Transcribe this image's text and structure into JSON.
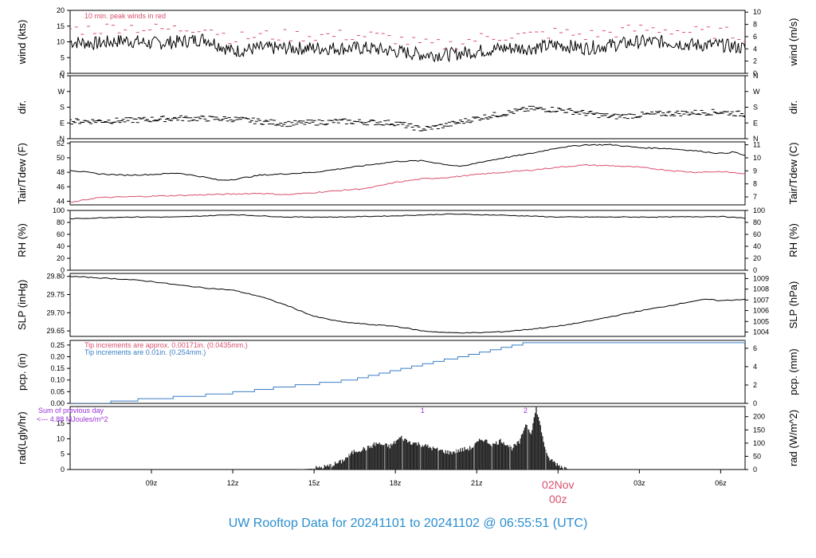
{
  "footer": {
    "title": "UW Rooftop Data for 20241101  to  20241102 @ 06:55:51  (UTC)"
  },
  "colors": {
    "trace": "#000000",
    "red": "#d94f6e",
    "blue": "#3a7ec4",
    "purple": "#9b30d9",
    "footer": "#2a8fd0",
    "axis": "#000000"
  },
  "chart_data": {
    "type": "line",
    "x_axis": {
      "unit": "hours since 01Nov 06z",
      "range": [
        0,
        24.9
      ],
      "ticks": [
        {
          "x": 3,
          "label": "09z"
        },
        {
          "x": 6,
          "label": "12z"
        },
        {
          "x": 9,
          "label": "15z"
        },
        {
          "x": 12,
          "label": "18z"
        },
        {
          "x": 15,
          "label": "21z"
        },
        {
          "x": 18,
          "label": "00z"
        },
        {
          "x": 21,
          "label": "03z"
        },
        {
          "x": 24,
          "label": "06z"
        }
      ],
      "date_label": "02Nov",
      "date_tick": "00z"
    },
    "panels": [
      {
        "name": "wind",
        "ylabel": "wind (kts)",
        "ylabel_right": "wind (m/s)",
        "ylim": [
          0,
          20
        ],
        "yticks": [
          0,
          5,
          10,
          15,
          20
        ],
        "yticks_right": {
          "labels": [
            "0",
            "2",
            "4",
            "6",
            "8",
            "10"
          ],
          "values": [
            0,
            3.89,
            7.78,
            11.66,
            15.55,
            19.44
          ]
        },
        "annotation": "10 min. peak winds in red",
        "series": [
          {
            "name": "wind",
            "style": "line",
            "x": [
              0,
              1,
              2,
              3,
              4,
              5,
              6,
              7,
              8,
              9,
              10,
              11,
              12,
              13,
              14,
              15,
              16,
              17,
              18,
              19,
              20,
              21,
              22,
              23,
              24,
              24.9
            ],
            "y": [
              10,
              9.5,
              10.5,
              9.5,
              10,
              11,
              7,
              8,
              8,
              8,
              8,
              8,
              7,
              6,
              6,
              7,
              8,
              8,
              9,
              8,
              9,
              10,
              10,
              9,
              9,
              8
            ]
          },
          {
            "name": "peak",
            "style": "dash",
            "x": [
              0,
              1,
              2,
              3,
              4,
              5,
              6,
              7,
              8,
              9,
              10,
              11,
              12,
              13,
              14,
              15,
              16,
              17,
              18,
              19,
              20,
              21,
              22,
              23,
              24,
              24.9
            ],
            "y": [
              14,
              14,
              15,
              14,
              14,
              15,
              11,
              12,
              12,
              12,
              12,
              12,
              11,
              9,
              9,
              11,
              12,
              12,
              13,
              12,
              13,
              14,
              14,
              13,
              13,
              12
            ]
          }
        ]
      },
      {
        "name": "dir",
        "ylabel": "dir.",
        "ylabel_right": "dir.",
        "ylim": [
          0,
          4
        ],
        "ytick_labels": [
          "N",
          "E",
          "S",
          "W",
          "N"
        ],
        "series": [
          {
            "name": "direction",
            "style": "dash",
            "x": [
              0,
              2,
              4,
              6,
              8,
              10,
              12,
              13,
              14,
              15,
              17,
              18,
              20,
              22,
              24,
              24.9
            ],
            "y": [
              1.1,
              1.15,
              1.3,
              1.25,
              0.95,
              1.1,
              1.0,
              0.6,
              0.9,
              1.3,
              1.9,
              1.85,
              1.4,
              1.6,
              1.7,
              1.55
            ]
          }
        ]
      },
      {
        "name": "temp",
        "ylabel": "Tair/Tdew (F)",
        "ylabel_right": "Tair/Tdew (C)",
        "ylim": [
          43.5,
          52.2
        ],
        "yticks": [
          44,
          46,
          48,
          50,
          52
        ],
        "yticks_right": {
          "labels": [
            "7",
            "8",
            "9",
            "10",
            "11"
          ],
          "values": [
            44.6,
            46.4,
            48.2,
            50.0,
            51.8
          ]
        },
        "series": [
          {
            "name": "Tair",
            "x": [
              0,
              1,
              2,
              3,
              4,
              5,
              5.5,
              6,
              7,
              8,
              9,
              10,
              11,
              12,
              13,
              14,
              14.5,
              15,
              16,
              17,
              18,
              19,
              20,
              21,
              22,
              23,
              24,
              24.5,
              24.9
            ],
            "y": [
              48.3,
              47.8,
              47.6,
              47.7,
              47.9,
              47.3,
              46.9,
              47.0,
              47.6,
              47.8,
              48.0,
              48.5,
              49.0,
              49.5,
              49.6,
              49.0,
              48.8,
              49.3,
              50.0,
              50.6,
              51.4,
              51.8,
              51.8,
              51.4,
              51.3,
              51.0,
              50.6,
              50.8,
              50.3
            ]
          },
          {
            "name": "Tdew",
            "x": [
              0,
              1,
              2,
              3,
              4,
              5,
              6,
              7,
              8,
              9,
              10,
              11,
              12,
              13,
              14,
              15,
              16,
              17,
              18,
              19,
              20,
              21,
              22,
              23,
              24,
              24.9
            ],
            "y": [
              43.8,
              44.5,
              44.6,
              44.7,
              44.8,
              44.9,
              45.0,
              45.1,
              44.9,
              45.2,
              45.5,
              45.8,
              46.6,
              47.1,
              47.3,
              47.7,
              48.0,
              48.3,
              48.7,
              49.0,
              48.9,
              48.7,
              48.3,
              48.0,
              48.1,
              47.8
            ]
          }
        ]
      },
      {
        "name": "rh",
        "ylabel": "RH (%)",
        "ylabel_right": "RH (%)",
        "ylim": [
          0,
          100
        ],
        "yticks": [
          0,
          20,
          40,
          60,
          80,
          100
        ],
        "series": [
          {
            "name": "RH",
            "x": [
              0,
              2,
              4,
              6,
              8,
              10,
              12,
              14,
              16,
              18,
              20,
              22,
              24,
              24.9
            ],
            "y": [
              86,
              89,
              89,
              93,
              89,
              89,
              91,
              94,
              92,
              89,
              89,
              89,
              90,
              87
            ]
          }
        ]
      },
      {
        "name": "slp",
        "ylabel": "SLP (inHg)",
        "ylabel_right": "SLP (hPa)",
        "ylim": [
          29.635,
          29.808
        ],
        "yticks": [
          29.65,
          29.7,
          29.75,
          29.8
        ],
        "yticks_right": {
          "labels": [
            "1004",
            "1005",
            "1006",
            "1007",
            "1008",
            "1009"
          ],
          "values": [
            29.647,
            29.676,
            29.706,
            29.735,
            29.765,
            29.794
          ]
        },
        "series": [
          {
            "name": "SLP",
            "x": [
              0,
              1,
              2,
              3,
              4,
              5,
              6,
              7,
              8,
              9,
              10,
              11,
              12,
              13,
              14,
              15,
              16,
              17,
              18,
              19,
              20,
              21,
              22,
              23,
              23.5,
              24,
              24.9
            ],
            "y": [
              29.8,
              29.796,
              29.792,
              29.786,
              29.776,
              29.768,
              29.762,
              29.745,
              29.72,
              29.69,
              29.675,
              29.668,
              29.663,
              29.65,
              29.645,
              29.645,
              29.648,
              29.655,
              29.663,
              29.675,
              29.69,
              29.705,
              29.718,
              29.732,
              29.737,
              29.733,
              29.737
            ]
          }
        ]
      },
      {
        "name": "pcp",
        "ylabel": "pcp. (in)",
        "ylabel_right": "pcp. (mm)",
        "ylim": [
          0,
          0.27
        ],
        "yticks": [
          0.0,
          0.05,
          0.1,
          0.15,
          0.2,
          0.25
        ],
        "yticks_right": {
          "labels": [
            "0",
            "2",
            "4",
            "6"
          ],
          "values": [
            0,
            0.0787,
            0.1575,
            0.2362
          ]
        },
        "annotations": [
          "Tip increments are approx. 0.00171in. (0.0435mm.)",
          "Tip increments are 0.01in. (0.254mm.)"
        ],
        "series": [
          {
            "name": "pcp",
            "style": "step",
            "x": [
              0,
              1,
              1.5,
              2.5,
              3.8,
              5.0,
              6.0,
              6.8,
              7.5,
              8.3,
              9.2,
              10.0,
              10.6,
              11.0,
              11.4,
              11.8,
              12.2,
              12.6,
              13.0,
              13.4,
              13.8,
              14.3,
              14.7,
              15.1,
              15.5,
              15.9,
              16.3,
              16.7,
              17.1,
              17.5,
              24.5,
              24.9
            ],
            "y": [
              0,
              0,
              0.01,
              0.02,
              0.03,
              0.04,
              0.05,
              0.06,
              0.07,
              0.08,
              0.09,
              0.1,
              0.11,
              0.12,
              0.13,
              0.14,
              0.15,
              0.16,
              0.17,
              0.18,
              0.19,
              0.2,
              0.21,
              0.22,
              0.23,
              0.24,
              0.25,
              0.26,
              0.26,
              0.26,
              0.26,
              0.27
            ]
          }
        ]
      },
      {
        "name": "rad",
        "ylabel": "rad(Lgly/hr)",
        "ylabel_right": "rad (W/m^2)",
        "ylim": [
          0,
          20.5
        ],
        "yticks": [
          0,
          5,
          10,
          15
        ],
        "yticks_right": {
          "labels": [
            "0",
            "50",
            "100",
            "150",
            "200"
          ],
          "values": [
            0,
            4.3,
            8.6,
            12.9,
            17.2
          ]
        },
        "annotations": [
          "Sum of previous day",
          "<--- 4.88 MJoules/m^2"
        ],
        "markers": [
          {
            "x": 13.0,
            "label": "1"
          },
          {
            "x": 16.8,
            "label": "2"
          }
        ],
        "series": [
          {
            "name": "radiation",
            "style": "area",
            "x": [
              8.3,
              9,
              9.5,
              10,
              10.5,
              11,
              11.3,
              11.8,
              12.2,
              12.5,
              13.0,
              13.5,
              14.0,
              14.5,
              14.8,
              15.2,
              15.6,
              15.9,
              16.3,
              16.6,
              16.8,
              17.0,
              17.2,
              17.6,
              18.0,
              18.4
            ],
            "y": [
              0,
              0.3,
              1.0,
              2.5,
              6.0,
              7.0,
              8.5,
              7.5,
              10.5,
              9.0,
              8.0,
              6.5,
              5.5,
              6.5,
              7.0,
              10.0,
              8.0,
              9.5,
              7.0,
              9.0,
              15.0,
              12.0,
              20.0,
              4.0,
              1.5,
              0
            ]
          }
        ]
      }
    ]
  }
}
